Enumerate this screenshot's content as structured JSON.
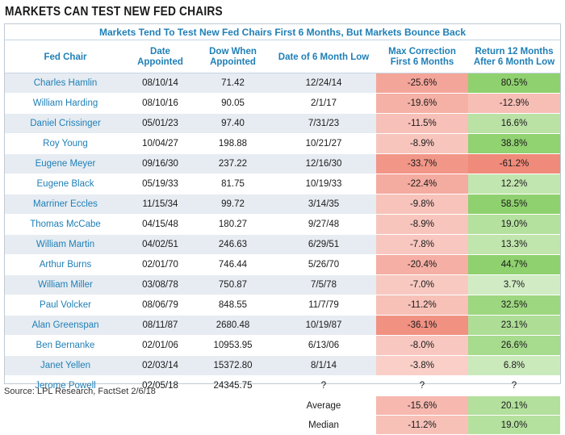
{
  "title": "MARKETS CAN TEST NEW FED CHAIRS",
  "subtitle": "Markets Tend To Test New Fed Chairs First 6 Months, But Markets Bounce Back",
  "headers": {
    "chair": "Fed Chair",
    "date": "Date Appointed",
    "dow": "Dow When Appointed",
    "low": "Date of 6 Month Low",
    "maxcorr": "Max Correction First 6 Months",
    "ret": "Return 12 Months After 6 Month Low"
  },
  "rows": [
    {
      "chair": "Charles Hamlin",
      "date": "08/10/14",
      "dow": "71.42",
      "low": "12/24/14",
      "maxcorr": "-25.6%",
      "ret": "80.5%"
    },
    {
      "chair": "William Harding",
      "date": "08/10/16",
      "dow": "90.05",
      "low": "2/1/17",
      "maxcorr": "-19.6%",
      "ret": "-12.9%"
    },
    {
      "chair": "Daniel Crissinger",
      "date": "05/01/23",
      "dow": "97.40",
      "low": "7/31/23",
      "maxcorr": "-11.5%",
      "ret": "16.6%"
    },
    {
      "chair": "Roy Young",
      "date": "10/04/27",
      "dow": "198.88",
      "low": "10/21/27",
      "maxcorr": "-8.9%",
      "ret": "38.8%"
    },
    {
      "chair": "Eugene Meyer",
      "date": "09/16/30",
      "dow": "237.22",
      "low": "12/16/30",
      "maxcorr": "-33.7%",
      "ret": "-61.2%"
    },
    {
      "chair": "Eugene Black",
      "date": "05/19/33",
      "dow": "81.75",
      "low": "10/19/33",
      "maxcorr": "-22.4%",
      "ret": "12.2%"
    },
    {
      "chair": "Marriner Eccles",
      "date": "11/15/34",
      "dow": "99.72",
      "low": "3/14/35",
      "maxcorr": "-9.8%",
      "ret": "58.5%"
    },
    {
      "chair": "Thomas McCabe",
      "date": "04/15/48",
      "dow": "180.27",
      "low": "9/27/48",
      "maxcorr": "-8.9%",
      "ret": "19.0%"
    },
    {
      "chair": "William Martin",
      "date": "04/02/51",
      "dow": "246.63",
      "low": "6/29/51",
      "maxcorr": "-7.8%",
      "ret": "13.3%"
    },
    {
      "chair": "Arthur Burns",
      "date": "02/01/70",
      "dow": "746.44",
      "low": "5/26/70",
      "maxcorr": "-20.4%",
      "ret": "44.7%"
    },
    {
      "chair": "William Miller",
      "date": "03/08/78",
      "dow": "750.87",
      "low": "7/5/78",
      "maxcorr": "-7.0%",
      "ret": "3.7%"
    },
    {
      "chair": "Paul Volcker",
      "date": "08/06/79",
      "dow": "848.55",
      "low": "11/7/79",
      "maxcorr": "-11.2%",
      "ret": "32.5%"
    },
    {
      "chair": "Alan Greenspan",
      "date": "08/11/87",
      "dow": "2680.48",
      "low": "10/19/87",
      "maxcorr": "-36.1%",
      "ret": "23.1%"
    },
    {
      "chair": "Ben Bernanke",
      "date": "02/01/06",
      "dow": "10953.95",
      "low": "6/13/06",
      "maxcorr": "-8.0%",
      "ret": "26.6%"
    },
    {
      "chair": "Janet Yellen",
      "date": "02/03/14",
      "dow": "15372.80",
      "low": "8/1/14",
      "maxcorr": "-3.8%",
      "ret": "6.8%"
    },
    {
      "chair": "Jerome Powell",
      "date": "02/05/18",
      "dow": "24345.75",
      "low": "?",
      "maxcorr": "?",
      "ret": "?"
    }
  ],
  "summary": [
    {
      "label": "Average",
      "maxcorr": "-15.6%",
      "ret": "20.1%"
    },
    {
      "label": "Median",
      "maxcorr": "-11.2%",
      "ret": "19.0%"
    }
  ],
  "footer": "Source: LPL Research, FactSet  2/6/18",
  "colors": {
    "header_blue": "#1f7fb6",
    "stripe": "#e6ecf2",
    "negative_red": "#f08a7a",
    "positive_green": "#8fd16e"
  }
}
